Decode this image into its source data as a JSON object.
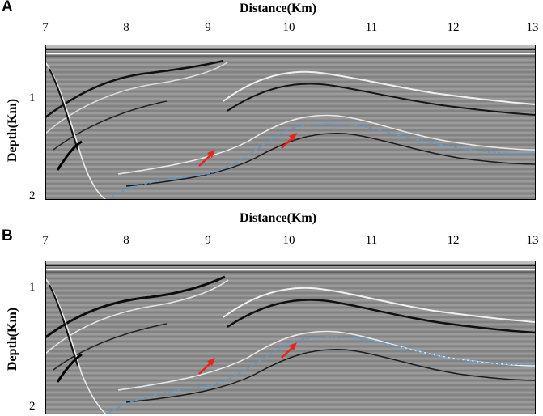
{
  "panels": [
    {
      "letter": "A",
      "xlabel": "Distance(Km)",
      "ylabel": "Depth(Km)",
      "xticks": [
        "7",
        "8",
        "9",
        "10",
        "11",
        "12",
        "13"
      ],
      "yticks": [
        "1",
        "2"
      ]
    },
    {
      "letter": "B",
      "xlabel": "Distance(Km)",
      "ylabel": "Depth(Km)",
      "xticks": [
        "7",
        "8",
        "9",
        "10",
        "11",
        "12",
        "13"
      ],
      "yticks": [
        "1",
        "2"
      ]
    }
  ],
  "colors": {
    "background": "#8c8c8c",
    "horizon_trace": "#5b9bd5",
    "arrows": "#e8231e"
  }
}
